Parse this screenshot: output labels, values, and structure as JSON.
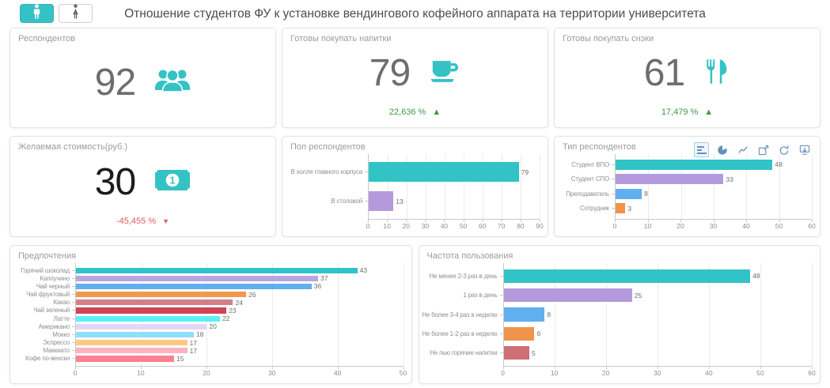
{
  "palette": {
    "accent": "#35c2c4",
    "delta_up": "#3d9a44",
    "delta_down": "#e05c5c"
  },
  "header": {
    "title": "Отношение студентов ФУ к установке вендингового кофейного аппарата на территории университета",
    "toggles": [
      {
        "icon": "male-person",
        "active": true
      },
      {
        "icon": "female-person",
        "active": false
      }
    ]
  },
  "kpis": [
    {
      "title": "Респондентов",
      "value": "92",
      "icon": "users-group"
    },
    {
      "title": "Готовы покупать напитки",
      "value": "79",
      "icon": "coffee-cup",
      "delta": "22,636 %",
      "trend": "up"
    },
    {
      "title": "Готовы покупать снэки",
      "value": "61",
      "icon": "cutlery",
      "delta": "17,479 %",
      "trend": "up"
    },
    {
      "title": "Желаемая стоимость(руб.)",
      "value": "30",
      "icon": "banknote",
      "delta": "-45,455 %",
      "trend": "down"
    }
  ],
  "toolbox": {
    "icons": [
      "bar-type",
      "pie-type",
      "line-type",
      "data-zoom",
      "restore",
      "save-image"
    ]
  },
  "chart_data": [
    {
      "type": "bar",
      "orientation": "horizontal",
      "title": "Пол респондентов",
      "categories": [
        "В холле главного корпуса",
        "В столовой"
      ],
      "values": [
        79,
        13
      ],
      "colors": [
        "#31c3c6",
        "#b49add"
      ],
      "xlim": [
        0,
        90
      ],
      "ticks": [
        0,
        10,
        20,
        30,
        40,
        50,
        60,
        70,
        80,
        90
      ],
      "grid": true,
      "xlabel": "",
      "ylabel": "",
      "legend": false
    },
    {
      "type": "bar",
      "orientation": "horizontal",
      "title": "Тип респондентов",
      "categories": [
        "Студент ВПО",
        "Студент СПО",
        "Преподаватель",
        "Сотрудник"
      ],
      "values": [
        48,
        33,
        8,
        3
      ],
      "colors": [
        "#31c3c6",
        "#b49add",
        "#61aef0",
        "#ef944a"
      ],
      "xlim": [
        0,
        60
      ],
      "ticks": [
        0,
        10,
        20,
        30,
        40,
        50,
        60
      ],
      "grid": true,
      "xlabel": "",
      "ylabel": "",
      "legend": false
    },
    {
      "type": "bar",
      "orientation": "horizontal",
      "title": "Предпочтения",
      "categories": [
        "Горячий шоколад",
        "Каппучино",
        "Чай черный",
        "Чай фруктовый",
        "Какао",
        "Чай зеленый",
        "Латте",
        "Американо",
        "Мокко",
        "Эспрессо",
        "Маккиато",
        "Кофе по-венски"
      ],
      "values": [
        43,
        37,
        36,
        26,
        24,
        23,
        22,
        20,
        18,
        17,
        17,
        15
      ],
      "colors": [
        "#31c3c6",
        "#b7a6e0",
        "#61aef0",
        "#f09a4e",
        "#d37f88",
        "#d04458",
        "#5ef0f4",
        "#e3d7f7",
        "#90dff9",
        "#fcc985",
        "#ffb3c0",
        "#fb8090"
      ],
      "xlim": [
        0,
        50
      ],
      "ticks": [
        0,
        10,
        20,
        30,
        40,
        50
      ],
      "grid": true,
      "xlabel": "",
      "ylabel": "",
      "legend": false
    },
    {
      "type": "bar",
      "orientation": "horizontal",
      "title": "Частота пользования",
      "categories": [
        "Не менее 2-3 раз в день",
        "1 раз в день",
        "Не более 3-4 раз в неделю",
        "Не более 1-2 раз в неделю",
        "Не пью горячие напитки"
      ],
      "values": [
        48,
        25,
        8,
        6,
        5
      ],
      "colors": [
        "#31c3c6",
        "#b49add",
        "#61aef0",
        "#ef944a",
        "#cd6f75"
      ],
      "xlim": [
        0,
        60
      ],
      "ticks": [
        0,
        10,
        20,
        30,
        40,
        50,
        60
      ],
      "grid": true,
      "xlabel": "",
      "ylabel": "",
      "legend": false
    }
  ]
}
